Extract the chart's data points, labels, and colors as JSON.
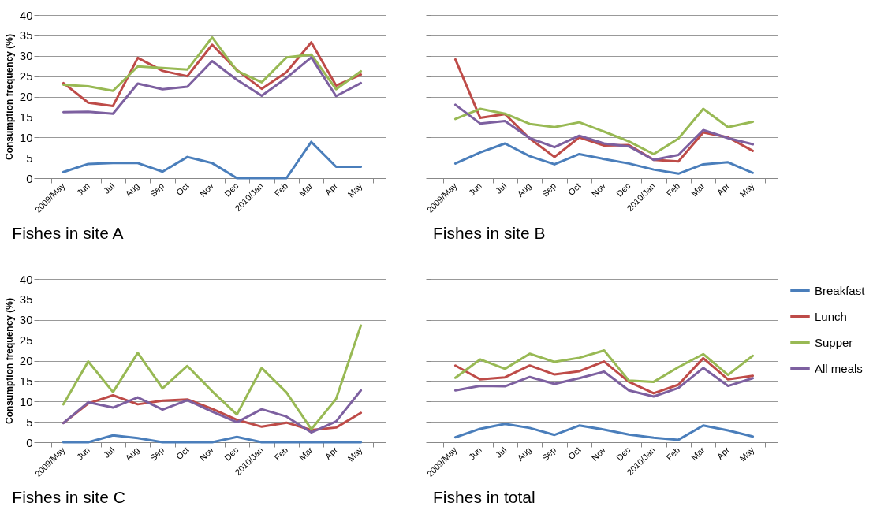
{
  "chart_data": [
    {
      "type": "line",
      "title": "Fishes in site A",
      "ylabel": "Consumption frequency (%)",
      "categories": [
        "2009/May",
        "Jun",
        "Jul",
        "Aug",
        "Sep",
        "Oct",
        "Nov",
        "Dec",
        "2010/Jan",
        "Feb",
        "Mar",
        "Apr",
        "May"
      ],
      "ylim": [
        0,
        40
      ],
      "yticks": [
        0,
        5,
        10,
        15,
        20,
        25,
        30,
        35,
        40
      ],
      "grid": "y",
      "series": [
        {
          "color": "#4a7ebb",
          "values": [
            1.5,
            3.5,
            3.7,
            3.7,
            1.6,
            5.2,
            3.7,
            0,
            0,
            0,
            8.9,
            2.8,
            2.8
          ]
        },
        {
          "color": "#be4b48",
          "values": [
            23.3,
            18.5,
            17.7,
            29.5,
            26.3,
            25.0,
            32.7,
            26.5,
            21.9,
            26.0,
            33.3,
            22.7,
            25.4
          ]
        },
        {
          "color": "#98b954",
          "values": [
            22.9,
            22.5,
            21.4,
            27.4,
            27.0,
            26.6,
            34.5,
            26.3,
            23.5,
            29.6,
            30.3,
            21.8,
            26.2
          ]
        },
        {
          "color": "#7d60a0",
          "values": [
            16.2,
            16.3,
            15.8,
            23.2,
            21.8,
            22.4,
            28.7,
            24.1,
            20.2,
            24.6,
            29.6,
            20.1,
            23.3
          ]
        }
      ]
    },
    {
      "type": "line",
      "title": "Fishes in site B",
      "categories": [
        "2009/May",
        "Jun",
        "Jul",
        "Aug",
        "Sep",
        "Oct",
        "Nov",
        "Dec",
        "2010/Jan",
        "Feb",
        "Mar",
        "Apr",
        "May"
      ],
      "ylim": [
        0,
        40
      ],
      "yticks": [
        0,
        5,
        10,
        15,
        20,
        25,
        30,
        35,
        40
      ],
      "grid": "y",
      "tick_labels": "x",
      "series": [
        {
          "color": "#4a7ebb",
          "values": [
            3.6,
            6.3,
            8.5,
            5.4,
            3.4,
            5.9,
            4.7,
            3.6,
            2.1,
            1.1,
            3.4,
            3.9,
            1.3
          ]
        },
        {
          "color": "#be4b48",
          "values": [
            29.1,
            14.8,
            15.7,
            9.7,
            5.2,
            10.0,
            8.0,
            8.1,
            4.5,
            4.1,
            11.2,
            10.0,
            6.7
          ]
        },
        {
          "color": "#98b954",
          "values": [
            14.5,
            17.0,
            15.8,
            13.3,
            12.5,
            13.7,
            11.4,
            9.0,
            5.9,
            9.7,
            17.0,
            12.5,
            13.8
          ]
        },
        {
          "color": "#7d60a0",
          "values": [
            18.0,
            13.4,
            14.0,
            9.8,
            7.6,
            10.4,
            8.5,
            7.8,
            4.5,
            5.7,
            11.8,
            9.8,
            8.3
          ]
        }
      ]
    },
    {
      "type": "line",
      "title": "Fishes in site C",
      "ylabel": "Consumption frequency (%)",
      "categories": [
        "2009/May",
        "Jun",
        "Jul",
        "Aug",
        "Sep",
        "Oct",
        "Nov",
        "Dec",
        "2010/Jan",
        "Feb",
        "Mar",
        "Apr",
        "May"
      ],
      "ylim": [
        0,
        40
      ],
      "yticks": [
        0,
        5,
        10,
        15,
        20,
        25,
        30,
        35,
        40
      ],
      "grid": "y",
      "series": [
        {
          "color": "#4a7ebb",
          "values": [
            0,
            0,
            1.7,
            1.0,
            0,
            0,
            0,
            1.3,
            0,
            0,
            0,
            0,
            0
          ]
        },
        {
          "color": "#be4b48",
          "values": [
            4.7,
            9.5,
            11.5,
            9.3,
            10.2,
            10.5,
            8.2,
            5.5,
            3.8,
            4.8,
            3.0,
            3.6,
            7.2
          ]
        },
        {
          "color": "#98b954",
          "values": [
            9.3,
            19.8,
            12.3,
            21.9,
            13.2,
            18.7,
            12.5,
            6.8,
            18.2,
            12.2,
            3.2,
            10.6,
            28.6
          ]
        },
        {
          "color": "#7d60a0",
          "values": [
            4.7,
            9.8,
            8.5,
            11.0,
            8.0,
            10.3,
            7.5,
            4.9,
            8.1,
            6.3,
            2.4,
            5.1,
            12.7
          ]
        }
      ]
    },
    {
      "type": "line",
      "title": "Fishes in total",
      "categories": [
        "2009/May",
        "Jun",
        "Jul",
        "Aug",
        "Sep",
        "Oct",
        "Nov",
        "Dec",
        "2010/Jan",
        "Feb",
        "Mar",
        "Apr",
        "May"
      ],
      "ylim": [
        0,
        40
      ],
      "yticks": [
        0,
        5,
        10,
        15,
        20,
        25,
        30,
        35,
        40
      ],
      "grid": "y",
      "tick_labels": "x",
      "legend": "right",
      "series": [
        {
          "name": "Breakfast",
          "color": "#4a7ebb",
          "values": [
            1.2,
            3.3,
            4.5,
            3.5,
            1.8,
            4.1,
            3.1,
            1.9,
            1.1,
            0.6,
            4.1,
            2.9,
            1.4
          ]
        },
        {
          "name": "Lunch",
          "color": "#be4b48",
          "values": [
            18.8,
            15.4,
            15.9,
            18.8,
            16.6,
            17.4,
            19.8,
            14.8,
            12.0,
            14.1,
            20.6,
            15.4,
            16.3
          ]
        },
        {
          "name": "Supper",
          "color": "#98b954",
          "values": [
            15.8,
            20.3,
            18.0,
            21.7,
            19.7,
            20.7,
            22.5,
            15.1,
            14.8,
            18.4,
            21.6,
            16.5,
            21.2
          ]
        },
        {
          "name": "All meals",
          "color": "#7d60a0",
          "values": [
            12.7,
            13.8,
            13.7,
            16.0,
            14.3,
            15.7,
            17.3,
            12.7,
            11.2,
            13.3,
            18.2,
            13.8,
            15.7
          ]
        }
      ]
    }
  ]
}
